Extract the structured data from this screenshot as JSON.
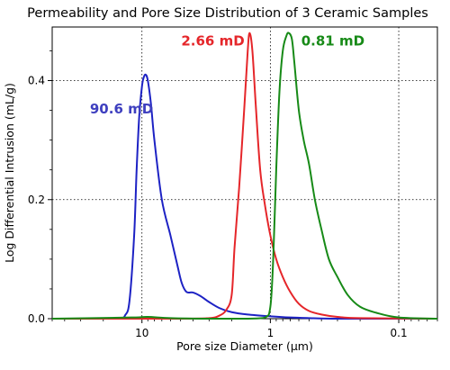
{
  "chart_data": {
    "type": "line",
    "title": "Permeability and Pore Size Distribution of 3 Ceramic Samples",
    "xlabel": "Pore size Diameter (µm)",
    "ylabel": "Log Differential Intrusion (mL/g)",
    "x_scale": "log",
    "x_reversed": true,
    "xlim": [
      50,
      0.05
    ],
    "ylim": [
      0,
      0.49
    ],
    "x_ticks": [
      10,
      1,
      0.1
    ],
    "x_tick_labels": [
      "10",
      "1",
      "0.1"
    ],
    "y_ticks": [
      0,
      0.2,
      0.4
    ],
    "y_tick_labels": [
      "0.0",
      "0.2",
      "0.4"
    ],
    "grid": "dotted, major ticks",
    "legend": "none",
    "annotations": [
      {
        "text": "90.6 mD",
        "color": "#3e3fbf",
        "series": 0
      },
      {
        "text": "2.66 mD",
        "color": "#e5262a",
        "series": 1
      },
      {
        "text": "0.81 mD",
        "color": "#178a17",
        "series": 2
      }
    ],
    "series": [
      {
        "color": "#1d22c4",
        "x": [
          50,
          25,
          15,
          13.5,
          12.5,
          11.5,
          11,
          10.5,
          10.0,
          9.7,
          9.35,
          9.0,
          8.5,
          8.0,
          7.0,
          6.0,
          5.3,
          4.9,
          4.5,
          4.0,
          3.5,
          3.0,
          2.5,
          2.0,
          1.5,
          1.0,
          0.7,
          0.5,
          0.3,
          0.15,
          0.05
        ],
        "y": [
          0.0,
          0.0,
          0.001,
          0.006,
          0.03,
          0.14,
          0.25,
          0.34,
          0.39,
          0.405,
          0.41,
          0.4,
          0.36,
          0.3,
          0.2,
          0.14,
          0.09,
          0.06,
          0.045,
          0.044,
          0.038,
          0.028,
          0.018,
          0.011,
          0.007,
          0.004,
          0.002,
          0.001,
          0.0,
          0.0,
          0.0
        ]
      },
      {
        "color": "#e5262a",
        "x": [
          50,
          5.0,
          3.0,
          2.5,
          2.2,
          2.0,
          1.9,
          1.75,
          1.6,
          1.5,
          1.45,
          1.38,
          1.3,
          1.2,
          1.1,
          1.0,
          0.9,
          0.8,
          0.7,
          0.6,
          0.5,
          0.4,
          0.3,
          0.2,
          0.05
        ],
        "y": [
          0.0,
          0.0,
          0.001,
          0.005,
          0.015,
          0.04,
          0.12,
          0.22,
          0.35,
          0.45,
          0.48,
          0.45,
          0.36,
          0.25,
          0.19,
          0.14,
          0.1,
          0.07,
          0.045,
          0.025,
          0.013,
          0.007,
          0.003,
          0.001,
          0.0
        ]
      },
      {
        "color": "#178a17",
        "x": [
          50,
          12,
          9,
          6,
          3,
          1.5,
          1.1,
          1.0,
          0.95,
          0.9,
          0.85,
          0.8,
          0.75,
          0.72,
          0.68,
          0.65,
          0.6,
          0.55,
          0.5,
          0.45,
          0.4,
          0.35,
          0.3,
          0.25,
          0.2,
          0.15,
          0.1,
          0.05
        ],
        "y": [
          0.0,
          0.002,
          0.003,
          0.001,
          0.0,
          0.0,
          0.002,
          0.02,
          0.1,
          0.25,
          0.38,
          0.45,
          0.475,
          0.48,
          0.47,
          0.43,
          0.35,
          0.3,
          0.26,
          0.2,
          0.15,
          0.1,
          0.07,
          0.04,
          0.02,
          0.01,
          0.002,
          0.0
        ]
      }
    ]
  }
}
